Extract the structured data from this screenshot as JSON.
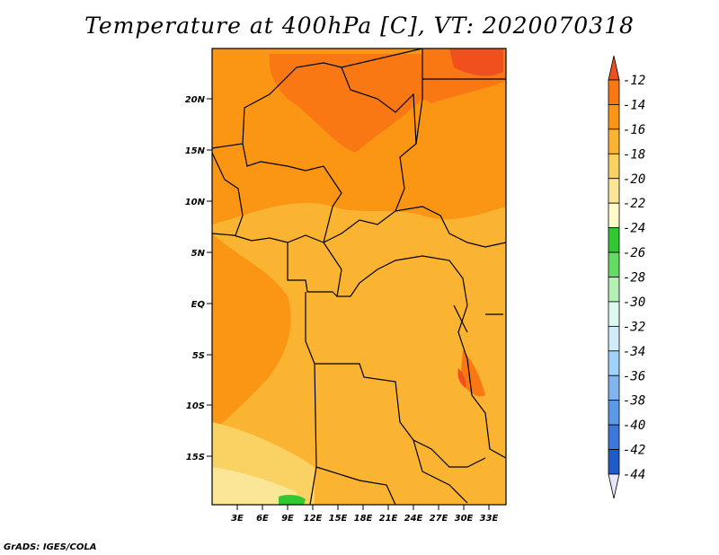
{
  "title": "Temperature at 400hPa [C], VT: 2020070318",
  "footer": "GrADS: IGES/COLA",
  "map": {
    "lon_ticks": [
      "3E",
      "6E",
      "9E",
      "12E",
      "15E",
      "18E",
      "21E",
      "24E",
      "27E",
      "30E",
      "33E"
    ],
    "lat_ticks": [
      "20N",
      "15N",
      "10N",
      "5N",
      "EQ",
      "5S",
      "10S",
      "15S"
    ]
  },
  "colorbar": {
    "levels": [
      "-12",
      "-14",
      "-16",
      "-18",
      "-20",
      "-22",
      "-24",
      "-26",
      "-28",
      "-30",
      "-32",
      "-34",
      "-36",
      "-38",
      "-40",
      "-42",
      "-44"
    ],
    "colors": [
      "#f0501e",
      "#fa7814",
      "#fa9614",
      "#fab432",
      "#fad264",
      "#fae696",
      "#fffac8",
      "#32c832",
      "#64dc64",
      "#b4f0b4",
      "#dcf8f0",
      "#d2ebfa",
      "#a0d2fa",
      "#82b4f0",
      "#5a9ae6",
      "#3c78dc",
      "#1e5ac8",
      "#0a3cb4",
      "#000080",
      "#e6e6fa"
    ]
  }
}
